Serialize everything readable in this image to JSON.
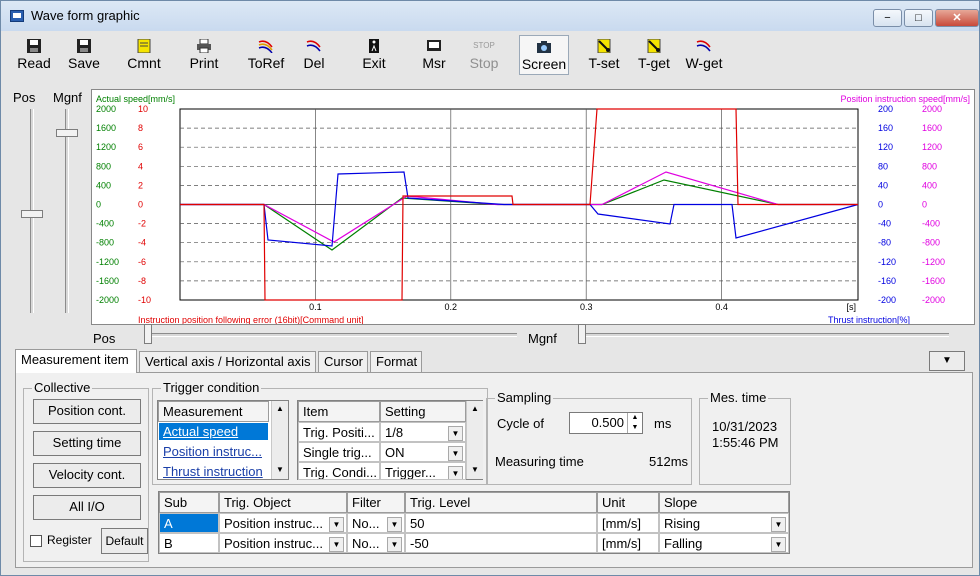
{
  "window": {
    "title": "Wave form graphic",
    "minimize": "−",
    "restore": "□",
    "close": "✕"
  },
  "toolbar": {
    "read": "Read",
    "save": "Save",
    "cmnt": "Cmnt",
    "print": "Print",
    "toref": "ToRef",
    "del": "Del",
    "exit": "Exit",
    "msr": "Msr",
    "stop": "Stop",
    "screen": "Screen",
    "tset": "T-set",
    "tget": "T-get",
    "wget": "W-get",
    "stop_icon_text": "STOP"
  },
  "sliders": {
    "pos_label": "Pos",
    "mgnf_label": "Mgnf",
    "h_pos_label": "Pos",
    "h_mgnf_label": "Mgnf"
  },
  "graph": {
    "left_axis_title": "Actual speed[mm/s]",
    "left_axis2_title": "Instruction position following error (16bit)[Command unit]",
    "right_axis_title": "Position instruction speed[mm/s]",
    "right_axis2_title": "Thrust instruction[%]",
    "left_ticks_speed": [
      "2000",
      "1600",
      "1200",
      "800",
      "400",
      "0",
      "-400",
      "-800",
      "-1200",
      "-1600",
      "-2000"
    ],
    "left_ticks_error": [
      "10",
      "8",
      "6",
      "4",
      "2",
      "0",
      "-2",
      "-4",
      "-6",
      "-8",
      "-10"
    ],
    "right_ticks_thrust": [
      "200",
      "160",
      "120",
      "80",
      "40",
      "0",
      "-40",
      "-80",
      "-120",
      "-160",
      "-200"
    ],
    "right_ticks_speed": [
      "2000",
      "1600",
      "1200",
      "800",
      "400",
      "0",
      "-400",
      "-800",
      "-1200",
      "-1600",
      "-2000"
    ],
    "x_ticks": [
      "0.1",
      "0.2",
      "0.3",
      "0.4"
    ],
    "x_unit": "[s]",
    "colors": {
      "actual_speed": "#008000",
      "error": "#e00000",
      "position_instruction": "#e000e0",
      "thrust": "#0000e0"
    }
  },
  "tabs": [
    "Measurement item",
    "Vertical axis / Horizontal axis",
    "Cursor",
    "Format"
  ],
  "tab_menu_arrow": "▼",
  "collective": {
    "title": "Collective",
    "buttons": [
      "Position cont.",
      "Setting time",
      "Velocity cont.",
      "All I/O"
    ],
    "register_label": "Register",
    "default_button": "Default"
  },
  "trigger": {
    "title": "Trigger condition",
    "measurement_header": "Measurement",
    "measurement_items": [
      "Actual speed",
      "Position instruc...",
      "Thrust instruction"
    ],
    "item_header": "Item",
    "setting_header": "Setting",
    "item_rows": [
      {
        "item": "Trig. Positi...",
        "setting": "1/8"
      },
      {
        "item": "Single trig...",
        "setting": "ON"
      },
      {
        "item": "Trig. Condi...",
        "setting": "Trigger..."
      }
    ]
  },
  "sampling": {
    "title": "Sampling",
    "cycle_label": "Cycle of",
    "cycle_value": "0.500",
    "cycle_unit": "ms",
    "measuring_label": "Measuring time",
    "measuring_value": "512ms"
  },
  "mes_time": {
    "title": "Mes. time",
    "date": "10/31/2023",
    "time": "1:55:46 PM"
  },
  "trig_table": {
    "headers": [
      "Sub",
      "Trig. Object",
      "Filter",
      "Trig. Level",
      "Unit",
      "Slope"
    ],
    "rows": [
      {
        "sub": "A",
        "object": "Position instruc...",
        "filter": "No...",
        "level": "50",
        "unit": "[mm/s]",
        "slope": "Rising"
      },
      {
        "sub": "B",
        "object": "Position instruc...",
        "filter": "No...",
        "level": "-50",
        "unit": "[mm/s]",
        "slope": "Falling"
      }
    ]
  },
  "arrows": {
    "up": "▲",
    "down": "▼"
  }
}
